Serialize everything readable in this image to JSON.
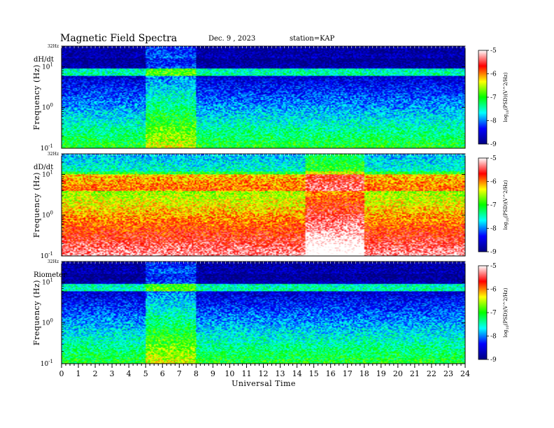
{
  "header": {
    "title": "Magnetic  Field  Spectra",
    "date": "Dec. 9  , 2023",
    "station": "station=KAP"
  },
  "chart_data": {
    "type": "heatmap",
    "xlabel": "Universal Time",
    "xlim": [
      0,
      24
    ],
    "x_ticks": [
      "0",
      "1",
      "2",
      "3",
      "4",
      "5",
      "6",
      "7",
      "8",
      "9",
      "10",
      "11",
      "12",
      "13",
      "14",
      "15",
      "16",
      "17",
      "18",
      "19",
      "20",
      "21",
      "22",
      "23",
      "24"
    ],
    "ylabel": "Frequency  (Hz)",
    "y_scale": "log",
    "ylim": [
      0.1,
      32
    ],
    "y_tick_values": [
      0.1,
      1,
      10
    ],
    "y_tick_base": "10",
    "y_tick_exponents": [
      "-1",
      "0",
      "1"
    ],
    "y_max_label": "32Hz",
    "colorbar": {
      "label_prefix": "log",
      "label_sub": "10",
      "label_suffix": "(PSD)(V^2/Hz)",
      "range": [
        -9,
        -5
      ],
      "ticks": [
        "-9",
        "-8",
        "-7",
        "-6",
        "-5"
      ],
      "colors": [
        "#000080",
        "#0000ff",
        "#00ffff",
        "#00ff00",
        "#ffff00",
        "#ff0000",
        "#ffffff"
      ]
    },
    "panels": [
      {
        "label": "dH/dt",
        "background_log_psd": -7.0,
        "bands": [
          {
            "f_low": 6,
            "f_high": 9,
            "log_psd": -7.4
          },
          {
            "f_low": 16,
            "f_high": 32,
            "log_psd": -8.7
          }
        ],
        "activity_ut": [
          5,
          8
        ]
      },
      {
        "label": "dD/dt",
        "background_log_psd": -5.2,
        "bands": [
          {
            "f_low": 4,
            "f_high": 10,
            "log_psd": -5.9
          },
          {
            "f_low": 12,
            "f_high": 32,
            "log_psd": -7.5
          }
        ],
        "activity_ut": [
          14.5,
          18
        ]
      },
      {
        "label": "Riometer",
        "background_log_psd": -7.0,
        "bands": [
          {
            "f_low": 6,
            "f_high": 9,
            "log_psd": -7.4
          },
          {
            "f_low": 16,
            "f_high": 32,
            "log_psd": -8.7
          }
        ],
        "activity_ut": [
          5,
          8
        ]
      }
    ]
  }
}
